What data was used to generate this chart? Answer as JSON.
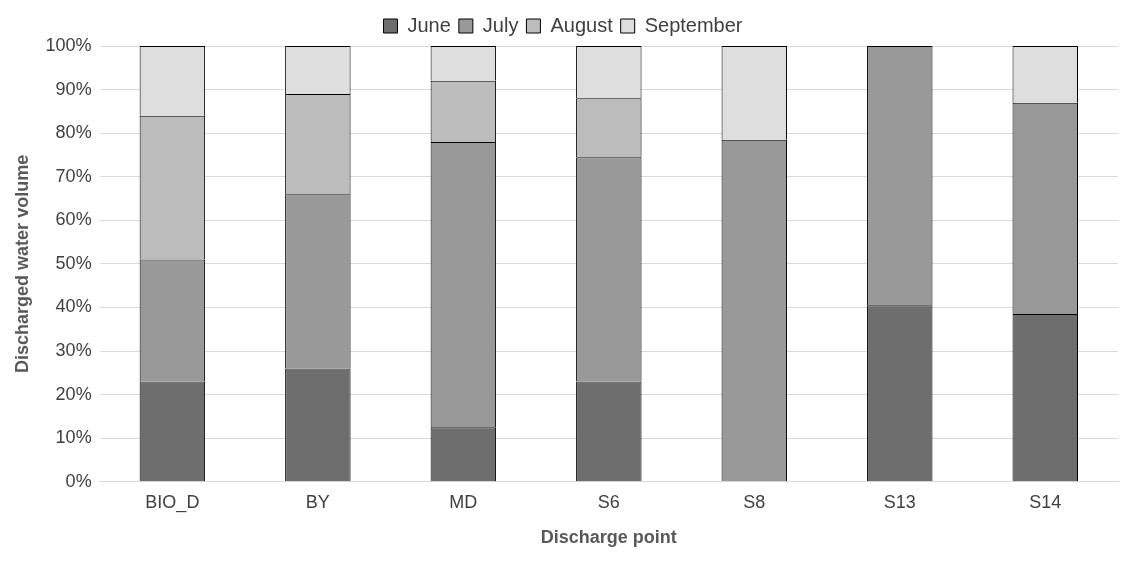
{
  "chart_data": {
    "type": "bar",
    "stacked": true,
    "xlabel": "Discharge point",
    "ylabel": "Discharged water volume",
    "categories": [
      "BIO_D",
      "BY",
      "MD",
      "S6",
      "S8",
      "S13",
      "S14"
    ],
    "series": [
      {
        "name": "June",
        "color": "#6e6e6e",
        "values": [
          23,
          26,
          12.5,
          23,
          0,
          40.5,
          38.5
        ]
      },
      {
        "name": "July",
        "color": "#999999",
        "values": [
          28,
          40,
          65.5,
          51.5,
          78.5,
          59.5,
          48.5
        ]
      },
      {
        "name": "August",
        "color": "#bcbcbc",
        "values": [
          33,
          23,
          14,
          13.5,
          0,
          0,
          0
        ]
      },
      {
        "name": "September",
        "color": "#dedede",
        "values": [
          16,
          11,
          8,
          12,
          21.5,
          0,
          13
        ]
      }
    ],
    "ylim": [
      0,
      100
    ],
    "yticks": [
      {
        "value": 0,
        "label": "0%"
      },
      {
        "value": 10,
        "label": "10%"
      },
      {
        "value": 20,
        "label": "20%"
      },
      {
        "value": 30,
        "label": "30%"
      },
      {
        "value": 40,
        "label": "40%"
      },
      {
        "value": 50,
        "label": "50%"
      },
      {
        "value": 60,
        "label": "60%"
      },
      {
        "value": 70,
        "label": "70%"
      },
      {
        "value": 80,
        "label": "80%"
      },
      {
        "value": 90,
        "label": "90%"
      },
      {
        "value": 100,
        "label": "100%"
      }
    ],
    "grid": "y",
    "legend": "top"
  }
}
